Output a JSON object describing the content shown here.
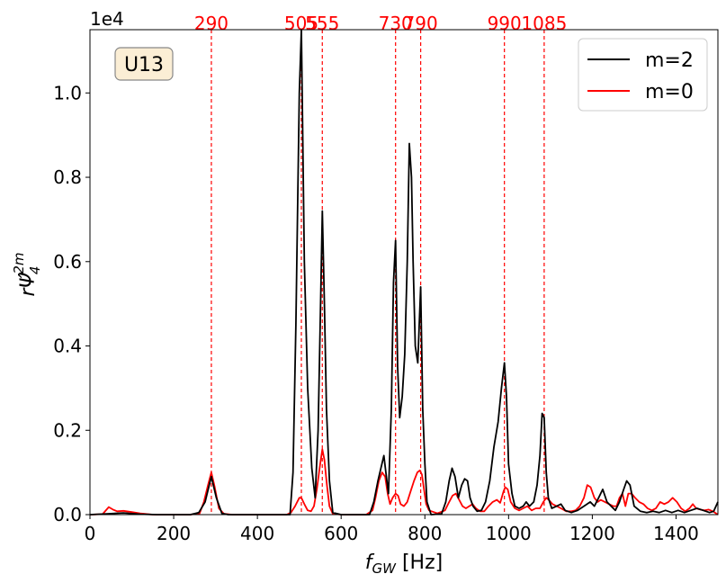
{
  "chart_data": {
    "type": "line",
    "tag": "U13",
    "xlabel_main": "f",
    "xlabel_sub": "GW",
    "xlabel_unit": " [Hz]",
    "ylabel_main": "rΨ̂",
    "ylabel_sub": "4",
    "ylabel_sup": "2m",
    "y_multiplier": "1e4",
    "xlim": [
      0,
      1500
    ],
    "ylim": [
      0,
      11500
    ],
    "x_ticks": [
      0,
      200,
      400,
      600,
      800,
      1000,
      1200,
      1400
    ],
    "x_tick_labels": [
      "0",
      "200",
      "400",
      "600",
      "800",
      "1000",
      "1200",
      "1400"
    ],
    "y_ticks": [
      0,
      2000,
      4000,
      6000,
      8000,
      10000
    ],
    "y_tick_labels": [
      "0.0",
      "0.2",
      "0.4",
      "0.6",
      "0.8",
      "1.0"
    ],
    "legend_position": "top-right",
    "vlines": [
      {
        "x": 290,
        "label": "290"
      },
      {
        "x": 505,
        "label": "505"
      },
      {
        "x": 555,
        "label": "555"
      },
      {
        "x": 730,
        "label": "730"
      },
      {
        "x": 790,
        "label": "790"
      },
      {
        "x": 990,
        "label": "990"
      },
      {
        "x": 1085,
        "label": "1085"
      }
    ],
    "vline_color": "#ff0000",
    "series": [
      {
        "name": "m=2",
        "color": "#000000",
        "points": [
          [
            0,
            0
          ],
          [
            40,
            20
          ],
          [
            80,
            40
          ],
          [
            120,
            10
          ],
          [
            160,
            0
          ],
          [
            200,
            0
          ],
          [
            240,
            0
          ],
          [
            260,
            50
          ],
          [
            275,
            300
          ],
          [
            290,
            900
          ],
          [
            302,
            400
          ],
          [
            315,
            30
          ],
          [
            330,
            0
          ],
          [
            400,
            0
          ],
          [
            460,
            0
          ],
          [
            478,
            0
          ],
          [
            485,
            1000
          ],
          [
            492,
            4500
          ],
          [
            500,
            10000
          ],
          [
            505,
            11500
          ],
          [
            512,
            6000
          ],
          [
            520,
            3000
          ],
          [
            530,
            1100
          ],
          [
            538,
            400
          ],
          [
            545,
            2000
          ],
          [
            550,
            4500
          ],
          [
            555,
            7200
          ],
          [
            560,
            5000
          ],
          [
            565,
            2500
          ],
          [
            572,
            800
          ],
          [
            580,
            50
          ],
          [
            600,
            0
          ],
          [
            640,
            0
          ],
          [
            668,
            0
          ],
          [
            678,
            300
          ],
          [
            688,
            800
          ],
          [
            695,
            1100
          ],
          [
            702,
            1400
          ],
          [
            708,
            900
          ],
          [
            713,
            500
          ],
          [
            720,
            2500
          ],
          [
            725,
            5500
          ],
          [
            730,
            6500
          ],
          [
            735,
            3500
          ],
          [
            740,
            2300
          ],
          [
            746,
            2800
          ],
          [
            752,
            3800
          ],
          [
            758,
            6000
          ],
          [
            763,
            8800
          ],
          [
            768,
            8000
          ],
          [
            772,
            6000
          ],
          [
            777,
            4000
          ],
          [
            783,
            3600
          ],
          [
            790,
            5400
          ],
          [
            795,
            2500
          ],
          [
            800,
            1200
          ],
          [
            805,
            300
          ],
          [
            815,
            0
          ],
          [
            840,
            20
          ],
          [
            850,
            300
          ],
          [
            858,
            800
          ],
          [
            865,
            1100
          ],
          [
            872,
            900
          ],
          [
            880,
            400
          ],
          [
            888,
            700
          ],
          [
            895,
            850
          ],
          [
            902,
            800
          ],
          [
            908,
            400
          ],
          [
            915,
            200
          ],
          [
            925,
            80
          ],
          [
            935,
            100
          ],
          [
            945,
            300
          ],
          [
            955,
            800
          ],
          [
            965,
            1600
          ],
          [
            975,
            2200
          ],
          [
            983,
            3000
          ],
          [
            990,
            3600
          ],
          [
            995,
            2800
          ],
          [
            1000,
            1200
          ],
          [
            1008,
            500
          ],
          [
            1015,
            200
          ],
          [
            1025,
            150
          ],
          [
            1035,
            200
          ],
          [
            1042,
            300
          ],
          [
            1050,
            200
          ],
          [
            1060,
            300
          ],
          [
            1068,
            700
          ],
          [
            1075,
            1400
          ],
          [
            1080,
            2400
          ],
          [
            1085,
            2300
          ],
          [
            1090,
            1000
          ],
          [
            1095,
            400
          ],
          [
            1103,
            150
          ],
          [
            1115,
            200
          ],
          [
            1125,
            250
          ],
          [
            1135,
            100
          ],
          [
            1150,
            50
          ],
          [
            1165,
            100
          ],
          [
            1180,
            200
          ],
          [
            1195,
            300
          ],
          [
            1205,
            200
          ],
          [
            1215,
            400
          ],
          [
            1225,
            600
          ],
          [
            1235,
            300
          ],
          [
            1245,
            200
          ],
          [
            1255,
            100
          ],
          [
            1265,
            300
          ],
          [
            1275,
            600
          ],
          [
            1282,
            800
          ],
          [
            1290,
            700
          ],
          [
            1300,
            200
          ],
          [
            1315,
            80
          ],
          [
            1330,
            50
          ],
          [
            1345,
            80
          ],
          [
            1360,
            50
          ],
          [
            1375,
            100
          ],
          [
            1390,
            50
          ],
          [
            1405,
            100
          ],
          [
            1420,
            50
          ],
          [
            1435,
            100
          ],
          [
            1450,
            150
          ],
          [
            1465,
            100
          ],
          [
            1480,
            50
          ],
          [
            1490,
            80
          ],
          [
            1500,
            300
          ]
        ]
      },
      {
        "name": "m=0",
        "color": "#ff0000",
        "points": [
          [
            0,
            0
          ],
          [
            30,
            10
          ],
          [
            45,
            180
          ],
          [
            55,
            120
          ],
          [
            65,
            80
          ],
          [
            80,
            90
          ],
          [
            100,
            60
          ],
          [
            120,
            30
          ],
          [
            150,
            0
          ],
          [
            200,
            0
          ],
          [
            240,
            0
          ],
          [
            262,
            30
          ],
          [
            272,
            300
          ],
          [
            282,
            700
          ],
          [
            290,
            1000
          ],
          [
            298,
            650
          ],
          [
            308,
            150
          ],
          [
            320,
            20
          ],
          [
            340,
            0
          ],
          [
            400,
            0
          ],
          [
            470,
            0
          ],
          [
            480,
            50
          ],
          [
            490,
            200
          ],
          [
            500,
            400
          ],
          [
            505,
            400
          ],
          [
            512,
            250
          ],
          [
            520,
            100
          ],
          [
            528,
            80
          ],
          [
            535,
            200
          ],
          [
            542,
            600
          ],
          [
            550,
            1200
          ],
          [
            555,
            1550
          ],
          [
            560,
            1300
          ],
          [
            566,
            700
          ],
          [
            572,
            200
          ],
          [
            580,
            20
          ],
          [
            600,
            0
          ],
          [
            660,
            0
          ],
          [
            675,
            100
          ],
          [
            682,
            400
          ],
          [
            690,
            800
          ],
          [
            698,
            1000
          ],
          [
            705,
            900
          ],
          [
            711,
            500
          ],
          [
            717,
            250
          ],
          [
            723,
            400
          ],
          [
            730,
            500
          ],
          [
            736,
            450
          ],
          [
            742,
            250
          ],
          [
            750,
            200
          ],
          [
            758,
            300
          ],
          [
            766,
            550
          ],
          [
            774,
            800
          ],
          [
            782,
            1000
          ],
          [
            788,
            1050
          ],
          [
            793,
            950
          ],
          [
            798,
            600
          ],
          [
            803,
            250
          ],
          [
            810,
            100
          ],
          [
            830,
            30
          ],
          [
            848,
            100
          ],
          [
            858,
            300
          ],
          [
            866,
            450
          ],
          [
            874,
            500
          ],
          [
            882,
            350
          ],
          [
            890,
            200
          ],
          [
            898,
            150
          ],
          [
            906,
            200
          ],
          [
            914,
            250
          ],
          [
            922,
            150
          ],
          [
            932,
            80
          ],
          [
            942,
            80
          ],
          [
            952,
            200
          ],
          [
            962,
            300
          ],
          [
            972,
            350
          ],
          [
            980,
            280
          ],
          [
            988,
            550
          ],
          [
            992,
            650
          ],
          [
            998,
            600
          ],
          [
            1005,
            300
          ],
          [
            1015,
            150
          ],
          [
            1025,
            100
          ],
          [
            1035,
            150
          ],
          [
            1045,
            200
          ],
          [
            1055,
            100
          ],
          [
            1065,
            150
          ],
          [
            1075,
            150
          ],
          [
            1083,
            300
          ],
          [
            1090,
            400
          ],
          [
            1096,
            350
          ],
          [
            1105,
            250
          ],
          [
            1115,
            200
          ],
          [
            1125,
            150
          ],
          [
            1138,
            80
          ],
          [
            1150,
            80
          ],
          [
            1160,
            100
          ],
          [
            1170,
            200
          ],
          [
            1180,
            400
          ],
          [
            1188,
            700
          ],
          [
            1196,
            650
          ],
          [
            1205,
            400
          ],
          [
            1213,
            300
          ],
          [
            1220,
            350
          ],
          [
            1230,
            300
          ],
          [
            1240,
            250
          ],
          [
            1250,
            200
          ],
          [
            1258,
            200
          ],
          [
            1265,
            400
          ],
          [
            1272,
            500
          ],
          [
            1279,
            200
          ],
          [
            1286,
            500
          ],
          [
            1294,
            500
          ],
          [
            1302,
            400
          ],
          [
            1312,
            300
          ],
          [
            1322,
            250
          ],
          [
            1332,
            150
          ],
          [
            1342,
            100
          ],
          [
            1352,
            150
          ],
          [
            1362,
            300
          ],
          [
            1372,
            250
          ],
          [
            1382,
            300
          ],
          [
            1392,
            400
          ],
          [
            1402,
            300
          ],
          [
            1412,
            150
          ],
          [
            1422,
            80
          ],
          [
            1432,
            150
          ],
          [
            1440,
            250
          ],
          [
            1448,
            150
          ],
          [
            1458,
            120
          ],
          [
            1468,
            100
          ],
          [
            1478,
            120
          ],
          [
            1488,
            80
          ],
          [
            1500,
            0
          ]
        ]
      }
    ]
  }
}
